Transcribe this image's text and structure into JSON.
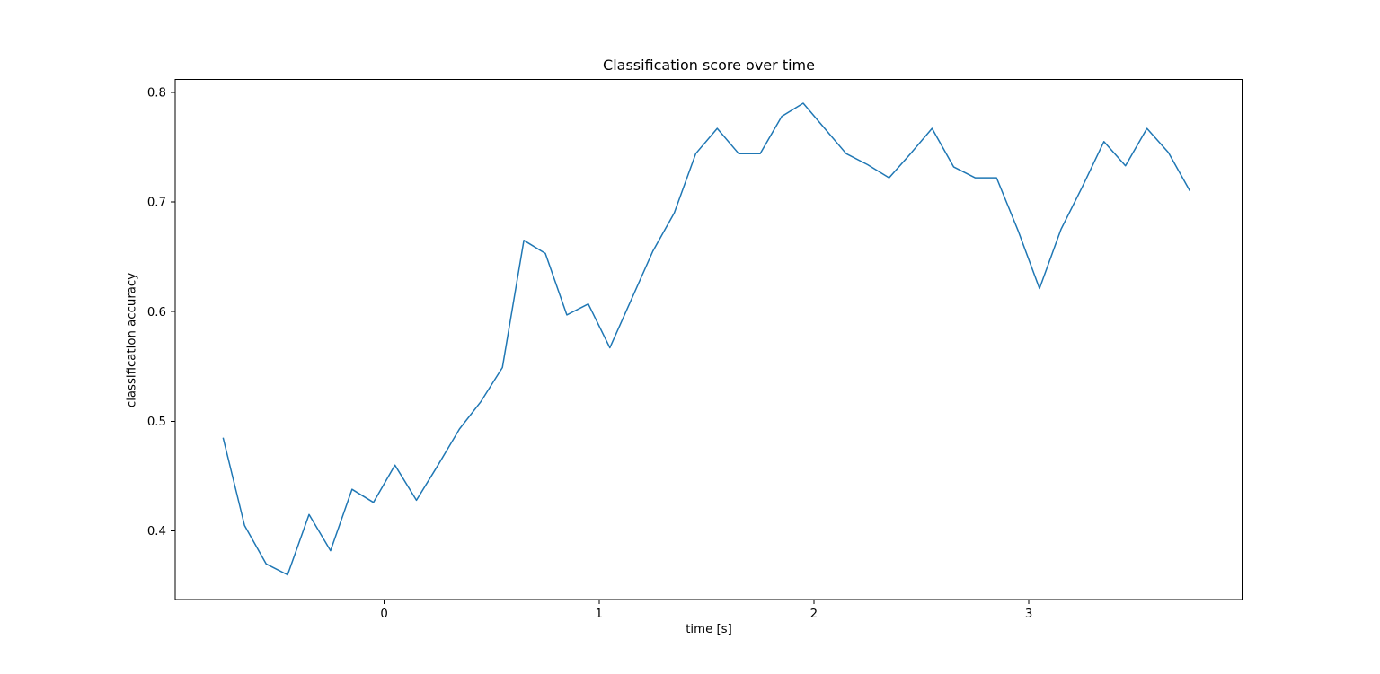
{
  "figure": {
    "background": "#ffffff"
  },
  "chart_data": {
    "type": "line",
    "title": "Classification score over time",
    "xlabel": "time [s]",
    "ylabel": "classification accuracy",
    "grid": false,
    "legend": false,
    "line_color": "#1f77b4",
    "line_width": 1.5,
    "axis_color": "#000000",
    "xlim": [
      -0.973,
      3.993
    ],
    "ylim": [
      0.3375,
      0.8117
    ],
    "xticks": [
      0,
      1,
      2,
      3
    ],
    "xtick_labels": [
      "0",
      "1",
      "2",
      "3"
    ],
    "yticks": [
      0.4,
      0.5,
      0.6,
      0.7,
      0.8
    ],
    "ytick_labels": [
      "0.4",
      "0.5",
      "0.6",
      "0.7",
      "0.8"
    ],
    "series": [
      {
        "name": "classification accuracy",
        "x": [
          -0.75,
          -0.65,
          -0.55,
          -0.45,
          -0.35,
          -0.25,
          -0.15,
          -0.05,
          0.05,
          0.15,
          0.25,
          0.35,
          0.45,
          0.55,
          0.65,
          0.75,
          0.85,
          0.95,
          1.05,
          1.15,
          1.25,
          1.35,
          1.45,
          1.55,
          1.65,
          1.75,
          1.85,
          1.95,
          2.05,
          2.15,
          2.25,
          2.35,
          2.45,
          2.55,
          2.65,
          2.75,
          2.85,
          2.95,
          3.05,
          3.15,
          3.25,
          3.35,
          3.45,
          3.55,
          3.65,
          3.75
        ],
        "y": [
          0.485,
          0.405,
          0.37,
          0.36,
          0.415,
          0.382,
          0.438,
          0.426,
          0.46,
          0.428,
          0.46,
          0.493,
          0.518,
          0.549,
          0.665,
          0.653,
          0.597,
          0.607,
          0.567,
          0.611,
          0.655,
          0.69,
          0.744,
          0.767,
          0.744,
          0.744,
          0.778,
          0.79,
          0.767,
          0.744,
          0.734,
          0.722,
          0.744,
          0.767,
          0.732,
          0.722,
          0.722,
          0.674,
          0.621,
          0.675,
          0.714,
          0.755,
          0.733,
          0.767,
          0.745,
          0.71
        ]
      }
    ]
  }
}
